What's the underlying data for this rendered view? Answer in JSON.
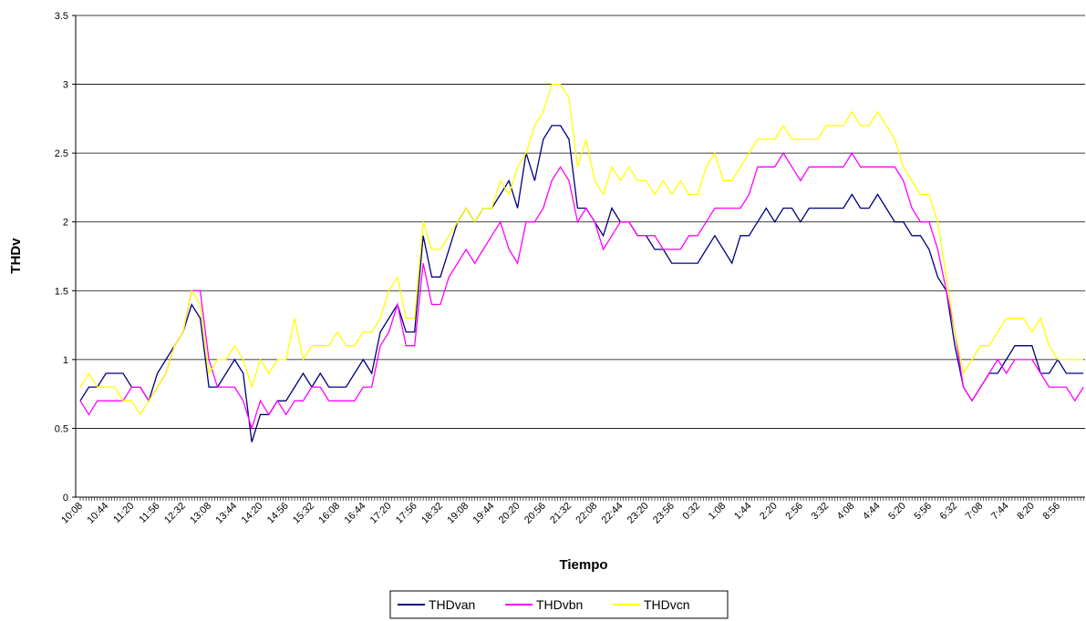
{
  "chart_data": {
    "type": "line",
    "x_label": "Tiempo",
    "y_label": "THDv",
    "categories": [
      "10:08",
      null,
      null,
      "10:44",
      null,
      null,
      "11:20",
      null,
      null,
      "11:56",
      null,
      null,
      "12:32",
      null,
      null,
      "13:08",
      null,
      null,
      "13:44",
      null,
      null,
      "14:20",
      null,
      null,
      "14:56",
      null,
      null,
      "15:32",
      null,
      null,
      "16:08",
      null,
      null,
      "16:44",
      null,
      null,
      "17:20",
      null,
      null,
      "17:56",
      null,
      null,
      "18:32",
      null,
      null,
      "19:08",
      null,
      null,
      "19:44",
      null,
      null,
      "20:20",
      null,
      null,
      "20:56",
      null,
      null,
      "21:32",
      null,
      null,
      "22:08",
      null,
      null,
      "22:44",
      null,
      null,
      "23:20",
      null,
      null,
      "23:56",
      null,
      null,
      "0:32",
      null,
      null,
      "1:08",
      null,
      null,
      "1:44",
      null,
      null,
      "2:20",
      null,
      null,
      "2:56",
      null,
      null,
      "3:32",
      null,
      null,
      "4:08",
      null,
      null,
      "4:44",
      null,
      null,
      "5:20",
      null,
      null,
      "5:56",
      null,
      null,
      "6:32",
      null,
      null,
      "7:08",
      null,
      null,
      "7:44",
      null,
      null,
      "8:20",
      null,
      null,
      "8:56",
      null,
      null,
      null
    ],
    "series": [
      {
        "name": "THDvan",
        "color": "#000080",
        "values": [
          0.7,
          0.8,
          0.8,
          0.9,
          0.9,
          0.9,
          0.8,
          0.8,
          0.7,
          0.9,
          1.0,
          1.1,
          1.2,
          1.4,
          1.3,
          0.8,
          0.8,
          0.9,
          1.0,
          0.9,
          0.4,
          0.6,
          0.6,
          0.7,
          0.7,
          0.8,
          0.9,
          0.8,
          0.9,
          0.8,
          0.8,
          0.8,
          0.9,
          1.0,
          0.9,
          1.2,
          1.3,
          1.4,
          1.2,
          1.2,
          1.9,
          1.6,
          1.6,
          1.8,
          2.0,
          2.1,
          2.0,
          2.1,
          2.1,
          2.2,
          2.3,
          2.1,
          2.5,
          2.3,
          2.6,
          2.7,
          2.7,
          2.6,
          2.1,
          2.1,
          2.0,
          1.9,
          2.1,
          2.0,
          2.0,
          1.9,
          1.9,
          1.8,
          1.8,
          1.7,
          1.7,
          1.7,
          1.7,
          1.8,
          1.9,
          1.8,
          1.7,
          1.9,
          1.9,
          2.0,
          2.1,
          2.0,
          2.1,
          2.1,
          2.0,
          2.1,
          2.1,
          2.1,
          2.1,
          2.1,
          2.2,
          2.1,
          2.1,
          2.2,
          2.1,
          2.0,
          2.0,
          1.9,
          1.9,
          1.8,
          1.6,
          1.5,
          1.1,
          0.8,
          0.7,
          0.8,
          0.9,
          0.9,
          1.0,
          1.1,
          1.1,
          1.1,
          0.9,
          0.9,
          1.0,
          0.9,
          0.9,
          0.9
        ]
      },
      {
        "name": "THDvbn",
        "color": "#ff00ff",
        "values": [
          0.7,
          0.6,
          0.7,
          0.7,
          0.7,
          0.7,
          0.8,
          0.8,
          0.7,
          0.8,
          0.9,
          1.1,
          1.2,
          1.5,
          1.5,
          1.0,
          0.8,
          0.8,
          0.8,
          0.7,
          0.5,
          0.7,
          0.6,
          0.7,
          0.6,
          0.7,
          0.7,
          0.8,
          0.8,
          0.7,
          0.7,
          0.7,
          0.7,
          0.8,
          0.8,
          1.1,
          1.2,
          1.4,
          1.1,
          1.1,
          1.7,
          1.4,
          1.4,
          1.6,
          1.7,
          1.8,
          1.7,
          1.8,
          1.9,
          2.0,
          1.8,
          1.7,
          2.0,
          2.0,
          2.1,
          2.3,
          2.4,
          2.3,
          2.0,
          2.1,
          2.0,
          1.8,
          1.9,
          2.0,
          2.0,
          1.9,
          1.9,
          1.9,
          1.8,
          1.8,
          1.8,
          1.9,
          1.9,
          2.0,
          2.1,
          2.1,
          2.1,
          2.1,
          2.2,
          2.4,
          2.4,
          2.4,
          2.5,
          2.4,
          2.3,
          2.4,
          2.4,
          2.4,
          2.4,
          2.4,
          2.5,
          2.4,
          2.4,
          2.4,
          2.4,
          2.4,
          2.3,
          2.1,
          2.0,
          2.0,
          1.8,
          1.5,
          1.2,
          0.8,
          0.7,
          0.8,
          0.9,
          1.0,
          0.9,
          1.0,
          1.0,
          1.0,
          0.9,
          0.8,
          0.8,
          0.8,
          0.7,
          0.8
        ]
      },
      {
        "name": "THDvcn",
        "color": "#ffff00",
        "values": [
          0.8,
          0.9,
          0.8,
          0.8,
          0.8,
          0.7,
          0.7,
          0.6,
          0.7,
          0.8,
          0.9,
          1.1,
          1.2,
          1.5,
          1.4,
          0.9,
          1.0,
          1.0,
          1.1,
          1.0,
          0.8,
          1.0,
          0.9,
          1.0,
          1.0,
          1.3,
          1.0,
          1.1,
          1.1,
          1.1,
          1.2,
          1.1,
          1.1,
          1.2,
          1.2,
          1.3,
          1.5,
          1.6,
          1.3,
          1.3,
          2.0,
          1.8,
          1.8,
          1.9,
          2.0,
          2.1,
          2.0,
          2.1,
          2.1,
          2.3,
          2.2,
          2.4,
          2.5,
          2.7,
          2.8,
          3.0,
          3.0,
          2.9,
          2.4,
          2.6,
          2.3,
          2.2,
          2.4,
          2.3,
          2.4,
          2.3,
          2.3,
          2.2,
          2.3,
          2.2,
          2.3,
          2.2,
          2.2,
          2.4,
          2.5,
          2.3,
          2.3,
          2.4,
          2.5,
          2.6,
          2.6,
          2.6,
          2.7,
          2.6,
          2.6,
          2.6,
          2.6,
          2.7,
          2.7,
          2.7,
          2.8,
          2.7,
          2.7,
          2.8,
          2.7,
          2.6,
          2.4,
          2.3,
          2.2,
          2.2,
          2.0,
          1.6,
          1.2,
          0.9,
          1.0,
          1.1,
          1.1,
          1.2,
          1.3,
          1.3,
          1.3,
          1.2,
          1.3,
          1.1,
          1.0,
          1.0,
          1.0,
          1.0
        ]
      }
    ],
    "ylim": [
      0,
      3.5
    ],
    "yticks": [
      0,
      0.5,
      1,
      1.5,
      2,
      2.5,
      3,
      3.5
    ],
    "grid": true,
    "legend": "bottom"
  }
}
